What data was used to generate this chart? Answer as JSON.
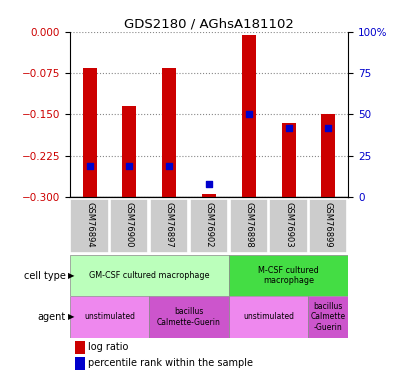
{
  "title": "GDS2180 / AGhsA181102",
  "samples": [
    "GSM76894",
    "GSM76900",
    "GSM76897",
    "GSM76902",
    "GSM76898",
    "GSM76903",
    "GSM76899"
  ],
  "log_ratio": [
    -0.065,
    -0.135,
    -0.065,
    -0.295,
    -0.005,
    -0.165,
    -0.15
  ],
  "percentile": [
    0.185,
    0.185,
    0.185,
    0.075,
    0.5,
    0.42,
    0.42
  ],
  "ylim_left": [
    -0.3,
    0.0
  ],
  "ylim_right": [
    0,
    100
  ],
  "yticks_left": [
    0.0,
    -0.075,
    -0.15,
    -0.225,
    -0.3
  ],
  "yticks_right": [
    0,
    25,
    50,
    75,
    100
  ],
  "bar_color": "#cc0000",
  "dot_color": "#0000cc",
  "cell_type_spans": [
    {
      "label": "GM-CSF cultured macrophage",
      "start": 0,
      "end": 4,
      "color": "#bbffbb"
    },
    {
      "label": "M-CSF cultured\nmacrophage",
      "start": 4,
      "end": 7,
      "color": "#44dd44"
    }
  ],
  "agent_spans": [
    {
      "label": "unstimulated",
      "start": 0,
      "end": 2,
      "color": "#ee88ee"
    },
    {
      "label": "bacillus\nCalmette-Guerin",
      "start": 2,
      "end": 4,
      "color": "#cc55cc"
    },
    {
      "label": "unstimulated",
      "start": 4,
      "end": 6,
      "color": "#ee88ee"
    },
    {
      "label": "bacillus\nCalmette\n-Guerin",
      "start": 6,
      "end": 7,
      "color": "#cc55cc"
    }
  ],
  "axis_color_left": "#cc0000",
  "axis_color_right": "#0000cc",
  "grid_color": "#888888",
  "bar_width": 0.35,
  "dot_size": 18
}
